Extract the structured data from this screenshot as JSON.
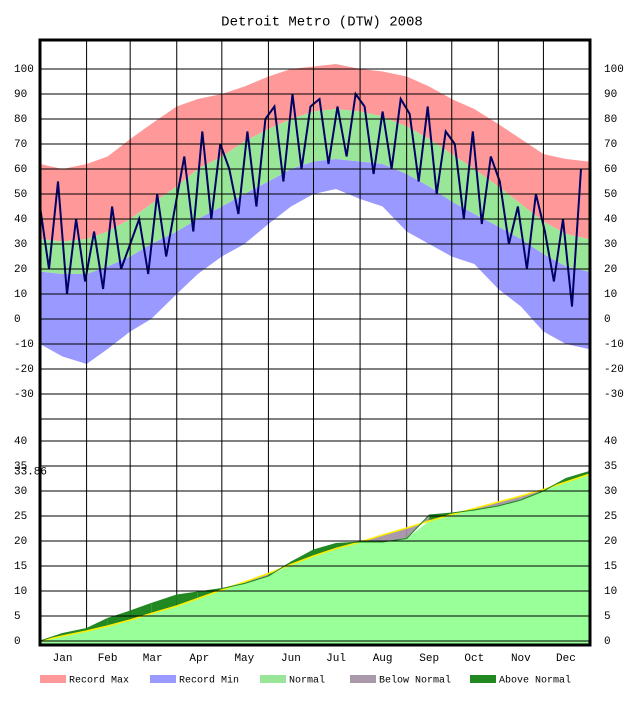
{
  "chart_data": [
    {
      "type": "area",
      "title": "Detroit Metro (DTW) 2008",
      "x": [
        1,
        16,
        32,
        46,
        61,
        75,
        92,
        106,
        122,
        137,
        153,
        168,
        183,
        198,
        214,
        229,
        245,
        260,
        275,
        290,
        306,
        321,
        336,
        351,
        366
      ],
      "xlim": [
        1,
        367
      ],
      "xgrid": [
        1,
        32,
        61,
        92,
        122,
        153,
        183,
        214,
        245,
        275,
        306,
        336
      ],
      "xticks": [
        {
          "value": 16,
          "label": "Jan"
        },
        {
          "value": 46,
          "label": "Feb"
        },
        {
          "value": 76,
          "label": "Mar"
        },
        {
          "value": 107,
          "label": "Apr"
        },
        {
          "value": 137,
          "label": "May"
        },
        {
          "value": 168,
          "label": "Jun"
        },
        {
          "value": 198,
          "label": "Jul"
        },
        {
          "value": 229,
          "label": "Aug"
        },
        {
          "value": 260,
          "label": "Sep"
        },
        {
          "value": 290,
          "label": "Oct"
        },
        {
          "value": 321,
          "label": "Nov"
        },
        {
          "value": 351,
          "label": "Dec"
        }
      ],
      "ylim": [
        -40,
        111.6
      ],
      "yticks": [
        -30,
        -20,
        -10,
        0,
        10,
        20,
        30,
        40,
        50,
        60,
        70,
        80,
        90,
        100
      ],
      "grid": true,
      "series": [
        {
          "name": "Record Max",
          "color": "#ff9999",
          "values": [
            62,
            60,
            62,
            65,
            72,
            78,
            85,
            88,
            90,
            93,
            97,
            100,
            101,
            102,
            100,
            99,
            97,
            93,
            88,
            84,
            78,
            72,
            66,
            64,
            63
          ]
        },
        {
          "name": "Normal",
          "color": "#99e699",
          "values": [
            32,
            31,
            32,
            35,
            40,
            46,
            53,
            60,
            65,
            71,
            76,
            80,
            83,
            84,
            83,
            81,
            77,
            72,
            66,
            60,
            53,
            46,
            39,
            34,
            32
          ],
          "low": [
            19,
            18,
            18,
            21,
            25,
            30,
            35,
            40,
            45,
            50,
            55,
            60,
            63,
            64,
            63,
            62,
            58,
            53,
            47,
            42,
            37,
            32,
            26,
            21,
            19
          ]
        },
        {
          "name": "Record Min",
          "color": "#9999ff",
          "values": [
            -10,
            -15,
            -18,
            -12,
            -5,
            0,
            10,
            18,
            25,
            30,
            38,
            45,
            50,
            52,
            48,
            45,
            35,
            30,
            25,
            22,
            12,
            5,
            -5,
            -10,
            -12
          ]
        }
      ],
      "observed": {
        "color": "#000066",
        "x": [
          1,
          7,
          13,
          19,
          25,
          31,
          37,
          43,
          49,
          55,
          61,
          67,
          73,
          79,
          85,
          91,
          97,
          103,
          109,
          115,
          121,
          127,
          133,
          139,
          145,
          151,
          157,
          163,
          169,
          175,
          181,
          187,
          193,
          199,
          205,
          211,
          217,
          223,
          229,
          235,
          241,
          247,
          253,
          259,
          265,
          271,
          277,
          283,
          289,
          295,
          301,
          307,
          313,
          319,
          325,
          331,
          337,
          343,
          349,
          355,
          361
        ],
        "values": [
          45,
          20,
          55,
          10,
          40,
          15,
          35,
          12,
          45,
          20,
          30,
          40,
          18,
          50,
          25,
          45,
          65,
          35,
          75,
          40,
          70,
          60,
          42,
          75,
          45,
          80,
          85,
          55,
          90,
          60,
          85,
          88,
          62,
          85,
          65,
          90,
          85,
          58,
          83,
          60,
          88,
          82,
          55,
          85,
          50,
          75,
          70,
          40,
          75,
          38,
          65,
          55,
          30,
          45,
          20,
          50,
          35,
          15,
          40,
          5,
          60
        ]
      }
    },
    {
      "type": "cumulative",
      "x": [
        1,
        16,
        32,
        46,
        61,
        75,
        92,
        106,
        122,
        137,
        153,
        168,
        183,
        198,
        214,
        229,
        245,
        260,
        275,
        290,
        306,
        321,
        336,
        351,
        366
      ],
      "xlim": [
        1,
        367
      ],
      "ylim": [
        -0.8,
        44.4
      ],
      "yticks": [
        0,
        5,
        10,
        15,
        20,
        25,
        30,
        35,
        40
      ],
      "grid": true,
      "fill_color": "#99ff99",
      "normal_line_color": "#ffee00",
      "annotation": "33.86",
      "series": [
        {
          "name": "Below Normal",
          "color": "#aa99aa",
          "values": [
            0,
            1.0,
            2.0,
            3.0,
            4.2,
            5.5,
            7.0,
            8.5,
            10.2,
            11.8,
            13.5,
            15.3,
            17.0,
            18.5,
            19.8,
            21.2,
            22.6,
            24.0,
            25.3,
            26.5,
            27.8,
            29.0,
            30.3,
            31.8,
            33.3
          ]
        },
        {
          "name": "Above Normal",
          "color": "#228822",
          "values": [
            0,
            1.5,
            2.5,
            4.5,
            6.0,
            7.5,
            9.2,
            9.8,
            10.5,
            11.5,
            13.0,
            15.8,
            18.2,
            19.5,
            19.8,
            19.8,
            20.5,
            25.2,
            25.6,
            26.2,
            27.0,
            28.2,
            30.0,
            32.5,
            33.86
          ]
        }
      ]
    }
  ]
}
